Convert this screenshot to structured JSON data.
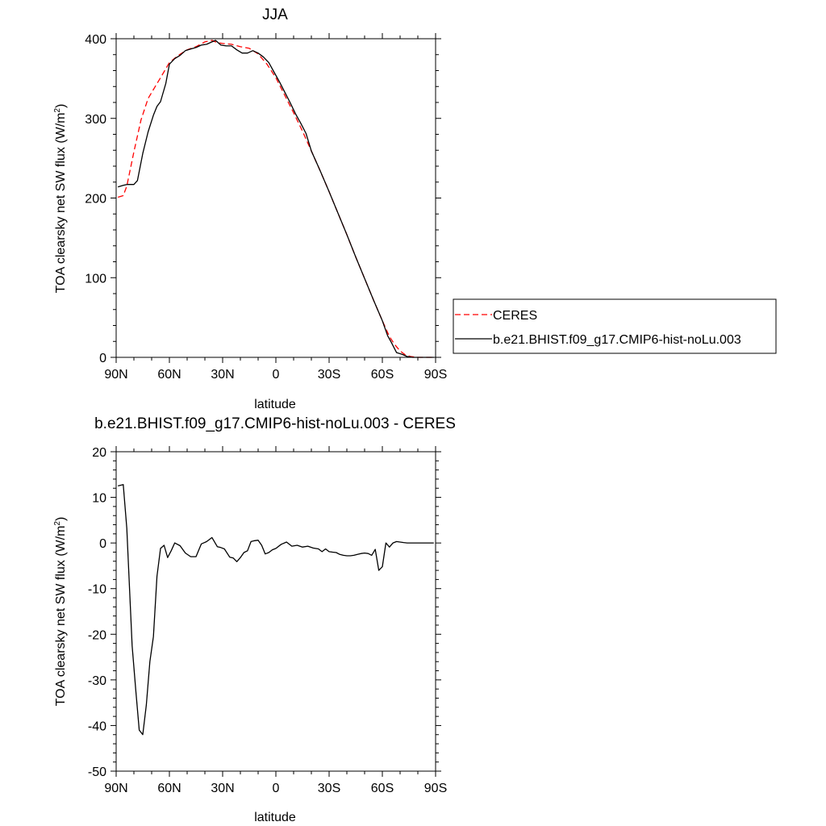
{
  "colors": {
    "model": "#000000",
    "ceres": "#ff0000",
    "axis": "#000000",
    "background": "#ffffff"
  },
  "chart_data": [
    {
      "type": "line",
      "title": "JJA",
      "xlabel": "latitude",
      "ylabel": "TOA clearsky net SW flux (W/m",
      "ylabel_sup": "2",
      "ylabel_close": ")",
      "xlim": [
        90,
        -90
      ],
      "ylim": [
        0,
        400
      ],
      "xticks": [
        90,
        60,
        30,
        0,
        -30,
        -60,
        -90
      ],
      "xtick_labels": [
        "90N",
        "60N",
        "30N",
        "0",
        "30S",
        "60S",
        "90S"
      ],
      "yticks": [
        0,
        100,
        200,
        300,
        400
      ],
      "ytick_labels": [
        "0",
        "100",
        "200",
        "300",
        "400"
      ],
      "grid": false,
      "legend_position": "right",
      "series": [
        {
          "name": "CERES",
          "style": "dashed",
          "color": "#ff0000",
          "x": [
            89,
            86,
            84,
            80,
            76,
            72,
            68,
            65,
            60,
            55,
            50,
            45,
            40,
            36,
            33,
            30,
            25,
            20,
            15,
            10,
            5,
            0,
            -5,
            -10,
            -15,
            -20,
            -25,
            -30,
            -35,
            -40,
            -45,
            -50,
            -55,
            -60,
            -64,
            -67,
            -70,
            -73,
            -76,
            -80,
            -84,
            -89
          ],
          "y": [
            201,
            203,
            215,
            258,
            298,
            325,
            340,
            351,
            370,
            379,
            386,
            390,
            396,
            398,
            395,
            394,
            393,
            390,
            388,
            381,
            368,
            351,
            329,
            307,
            284,
            259,
            234,
            208,
            181,
            154,
            126,
            99,
            72,
            46,
            26,
            16,
            8,
            3,
            1,
            0,
            0,
            0
          ]
        },
        {
          "name": "b.e21.BHIST.f09_g17.CMIP6-hist-noLu.003",
          "style": "solid",
          "color": "#000000",
          "x": [
            89,
            86,
            84,
            80,
            78,
            75,
            72,
            69,
            67,
            65,
            62,
            60,
            57,
            54,
            51,
            48,
            45,
            42,
            39,
            36,
            34,
            31,
            28,
            25,
            22,
            19,
            16,
            13,
            10,
            7,
            4,
            1,
            -2,
            -5,
            -8,
            -11,
            -14,
            -17,
            -20,
            -25,
            -30,
            -35,
            -40,
            -45,
            -50,
            -55,
            -60,
            -63,
            -65,
            -68,
            -71,
            -74,
            -77,
            -80,
            -83,
            -86,
            -89
          ],
          "y": [
            214,
            216,
            217,
            217,
            222,
            256,
            283,
            304,
            315,
            321,
            344,
            368,
            375,
            379,
            385,
            387,
            389,
            392,
            393,
            396,
            398,
            392,
            391,
            391,
            386,
            382,
            382,
            385,
            382,
            377,
            370,
            358,
            346,
            333,
            320,
            306,
            294,
            281,
            259,
            234,
            208,
            181,
            154,
            126,
            99,
            72,
            46,
            27,
            19,
            6,
            4,
            1,
            0,
            0,
            0,
            0,
            0
          ]
        }
      ]
    },
    {
      "type": "line",
      "title": "b.e21.BHIST.f09_g17.CMIP6-hist-noLu.003 - CERES",
      "xlabel": "latitude",
      "ylabel": "TOA clearsky net SW flux (W/m",
      "ylabel_sup": "2",
      "ylabel_close": ")",
      "xlim": [
        90,
        -90
      ],
      "ylim": [
        -50,
        20
      ],
      "xticks": [
        90,
        60,
        30,
        0,
        -30,
        -60,
        -90
      ],
      "xtick_labels": [
        "90N",
        "60N",
        "30N",
        "0",
        "30S",
        "60S",
        "90S"
      ],
      "yticks": [
        -50,
        -40,
        -30,
        -20,
        -10,
        0,
        10,
        20
      ],
      "ytick_labels": [
        "-50",
        "-40",
        "-30",
        "-20",
        "-10",
        "0",
        "10",
        "20"
      ],
      "grid": false,
      "series": [
        {
          "style": "solid",
          "color": "#000000",
          "x": [
            89,
            86,
            84,
            81,
            79,
            77,
            75,
            73,
            71,
            69,
            67,
            65,
            63,
            61,
            59,
            57,
            54,
            51,
            48,
            45,
            42,
            39,
            36,
            33,
            31,
            29,
            26,
            24,
            22,
            20,
            18,
            16,
            14,
            12,
            10,
            8,
            6,
            4,
            2,
            0,
            -3,
            -6,
            -9,
            -12,
            -15,
            -18,
            -21,
            -24,
            -26,
            -28,
            -30,
            -32,
            -34,
            -36,
            -38,
            -40,
            -42,
            -44,
            -46,
            -48,
            -50,
            -52,
            -54,
            -56,
            -58,
            -60,
            -62,
            -64,
            -66,
            -68,
            -70,
            -72,
            -74,
            -76,
            -78,
            -82,
            -86,
            -89
          ],
          "y": [
            12.5,
            12.8,
            3.2,
            -22.5,
            -32,
            -41,
            -42,
            -35.5,
            -26,
            -20.5,
            -7.3,
            -1.2,
            -0.5,
            -3.2,
            -1.7,
            0.0,
            -0.6,
            -2.2,
            -3.0,
            -3.0,
            -0.2,
            0.3,
            1.2,
            -0.8,
            -1.0,
            -1.3,
            -3.1,
            -3.3,
            -4.1,
            -3.2,
            -2.1,
            -1.7,
            0.3,
            0.5,
            0.6,
            -0.5,
            -2.4,
            -2.1,
            -1.5,
            -1.2,
            -0.3,
            0.2,
            -0.7,
            -0.5,
            -0.9,
            -0.7,
            -1.1,
            -1.3,
            -1.9,
            -1.3,
            -1.9,
            -2.0,
            -2.1,
            -2.5,
            -2.7,
            -2.8,
            -2.8,
            -2.7,
            -2.5,
            -2.3,
            -2.2,
            -2.3,
            -2.7,
            -1.4,
            -6.0,
            -5.2,
            0.0,
            -0.9,
            0.0,
            0.3,
            0.2,
            0.1,
            0.0,
            0.0,
            0.0,
            0.0,
            0.0,
            0.0
          ]
        }
      ]
    }
  ]
}
